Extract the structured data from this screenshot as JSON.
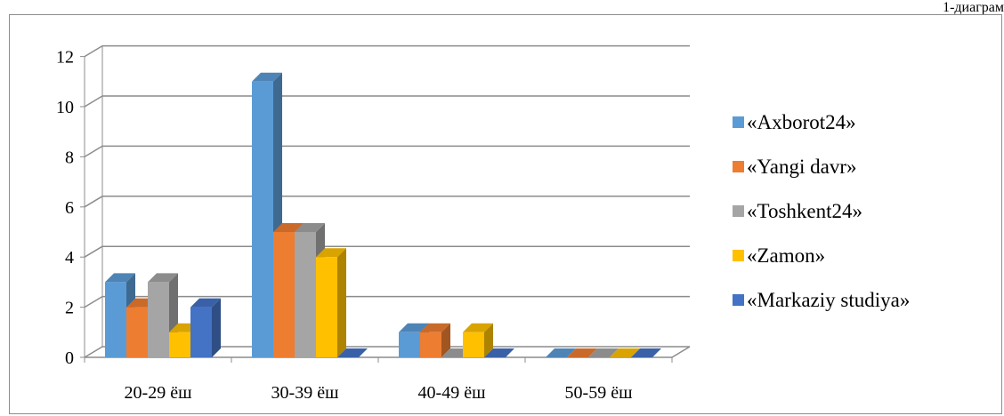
{
  "caption": "1-диаграм",
  "chart_data": {
    "type": "bar",
    "categories": [
      "20-29 ёш",
      "30-39 ёш",
      "40-49 ёш",
      "50-59 ёш"
    ],
    "series": [
      {
        "name": "«Axborot24»",
        "values": [
          3,
          11,
          1,
          0
        ],
        "color": "#5b9bd5"
      },
      {
        "name": "«Yangi davr»",
        "values": [
          2,
          5,
          1,
          0
        ],
        "color": "#ed7d31"
      },
      {
        "name": "«Toshkent24»",
        "values": [
          3,
          5,
          0,
          0
        ],
        "color": "#a5a5a5"
      },
      {
        "name": "«Zamon»",
        "values": [
          1,
          4,
          1,
          0
        ],
        "color": "#ffc000"
      },
      {
        "name": "«Markaziy studiya»",
        "values": [
          2,
          0,
          0,
          0
        ],
        "color": "#4472c4"
      }
    ],
    "yticks": [
      "0",
      "2",
      "4",
      "6",
      "8",
      "10",
      "12"
    ],
    "ylim": [
      0,
      12
    ],
    "grid": true,
    "legend": "right",
    "three_d": true,
    "title": "",
    "xlabel": "",
    "ylabel": ""
  }
}
